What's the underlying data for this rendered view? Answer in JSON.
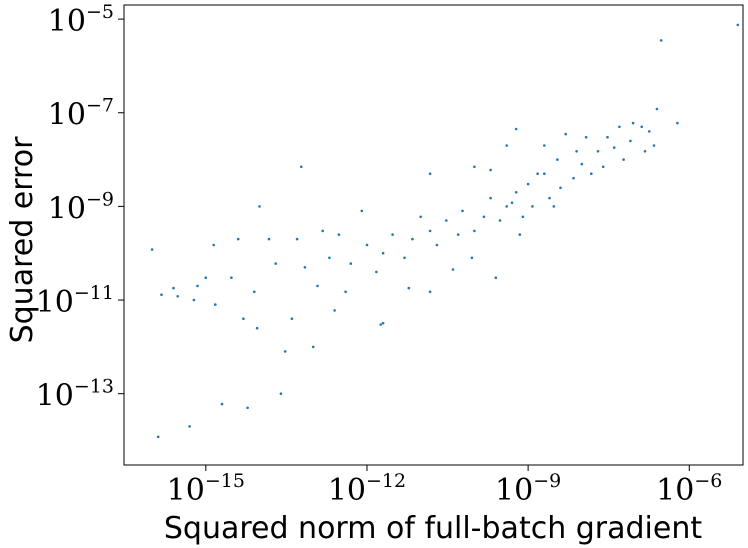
{
  "chart_data": {
    "type": "scatter",
    "title": "",
    "xlabel": "Squared norm of full-batch gradient",
    "ylabel": "Squared error",
    "xscale": "log",
    "yscale": "log",
    "xlim": [
      3e-17,
      1e-05
    ],
    "ylim": [
      3e-15,
      2e-05
    ],
    "grid": false,
    "marker_color": "#1f77b4",
    "x_ticks": [
      {
        "base": "10",
        "exp": "−15",
        "value": 1e-15
      },
      {
        "base": "10",
        "exp": "−12",
        "value": 1e-12
      },
      {
        "base": "10",
        "exp": "−9",
        "value": 1e-09
      },
      {
        "base": "10",
        "exp": "−6",
        "value": 1e-06
      }
    ],
    "y_ticks": [
      {
        "base": "10",
        "exp": "−5",
        "value": 1e-05
      },
      {
        "base": "10",
        "exp": "−7",
        "value": 1e-07
      },
      {
        "base": "10",
        "exp": "−9",
        "value": 1e-09
      },
      {
        "base": "10",
        "exp": "−11",
        "value": 1e-11
      },
      {
        "base": "10",
        "exp": "−13",
        "value": 1e-13
      }
    ],
    "points_note": "approximately 800 points; representative sample listed",
    "points": [
      [
        8e-06,
        7.5e-06
      ],
      [
        3e-07,
        3.5e-06
      ],
      [
        6e-07,
        6e-08
      ],
      [
        2.5e-07,
        1.2e-07
      ],
      [
        1.8e-07,
        4e-08
      ],
      [
        2.2e-07,
        2e-08
      ],
      [
        1.3e-07,
        5e-08
      ],
      [
        9e-08,
        6e-08
      ],
      [
        1.5e-07,
        1.5e-08
      ],
      [
        8e-08,
        2.5e-08
      ],
      [
        5e-08,
        5e-08
      ],
      [
        3e-08,
        3e-08
      ],
      [
        6e-08,
        1e-08
      ],
      [
        4e-08,
        1.8e-08
      ],
      [
        2e-08,
        1.5e-08
      ],
      [
        1.2e-08,
        3e-08
      ],
      [
        2.5e-08,
        7e-09
      ],
      [
        1.5e-08,
        5e-09
      ],
      [
        8e-09,
        1.5e-08
      ],
      [
        5e-09,
        3.5e-08
      ],
      [
        1e-08,
        8e-09
      ],
      [
        7e-09,
        4e-09
      ],
      [
        3.5e-09,
        1e-08
      ],
      [
        2e-09,
        2e-08
      ],
      [
        4e-09,
        2.5e-09
      ],
      [
        6e-10,
        4.5e-08
      ],
      [
        1.5e-09,
        5e-09
      ],
      [
        2.5e-09,
        1.5e-09
      ],
      [
        1e-09,
        3e-09
      ],
      [
        1.2e-09,
        1e-09
      ],
      [
        6e-10,
        2e-09
      ],
      [
        8e-10,
        6e-10
      ],
      [
        4e-10,
        1e-09
      ],
      [
        3e-10,
        5e-10
      ],
      [
        2e-10,
        1.5e-09
      ],
      [
        1.5e-10,
        6e-10
      ],
      [
        1e-10,
        3e-10
      ],
      [
        6e-11,
        8e-10
      ],
      [
        5e-11,
        2.5e-10
      ],
      [
        3e-11,
        5e-10
      ],
      [
        2e-11,
        1.5e-10
      ],
      [
        1.5e-11,
        3e-10
      ],
      [
        1e-11,
        6e-10
      ],
      [
        7e-12,
        2e-10
      ],
      [
        5e-12,
        8e-11
      ],
      [
        3e-12,
        2.5e-10
      ],
      [
        2e-12,
        1e-10
      ],
      [
        1.5e-12,
        4e-11
      ],
      [
        1e-12,
        1.5e-10
      ],
      [
        8e-13,
        8e-10
      ],
      [
        5e-13,
        6e-11
      ],
      [
        4e-13,
        1.5e-11
      ],
      [
        3e-13,
        2.5e-10
      ],
      [
        2.5e-13,
        6e-12
      ],
      [
        2e-13,
        8e-11
      ],
      [
        1.5e-13,
        3e-10
      ],
      [
        1.2e-13,
        2e-11
      ],
      [
        1e-13,
        1e-12
      ],
      [
        7e-14,
        5e-11
      ],
      [
        6e-14,
        7e-09
      ],
      [
        5e-14,
        2e-10
      ],
      [
        4e-14,
        4e-12
      ],
      [
        3e-14,
        8e-13
      ],
      [
        2.5e-14,
        1e-13
      ],
      [
        2e-14,
        6e-11
      ],
      [
        1.5e-14,
        2e-10
      ],
      [
        1e-14,
        1e-09
      ],
      [
        8e-15,
        1.5e-11
      ],
      [
        6e-15,
        5e-14
      ],
      [
        5e-15,
        4e-12
      ],
      [
        4e-15,
        2e-10
      ],
      [
        3e-15,
        3e-11
      ],
      [
        2e-15,
        6e-14
      ],
      [
        1.5e-15,
        8e-12
      ],
      [
        1e-15,
        3e-11
      ],
      [
        7e-16,
        2e-11
      ],
      [
        6e-16,
        1e-11
      ],
      [
        5e-16,
        2e-14
      ],
      [
        3e-16,
        1.2e-11
      ],
      [
        2.5e-16,
        1.8e-11
      ],
      [
        1.5e-16,
        1.3e-11
      ],
      [
        1e-16,
        1.2e-10
      ],
      [
        1.3e-16,
        1.2e-14
      ],
      [
        1.4e-15,
        1.5e-10
      ],
      [
        9e-15,
        2.5e-12
      ],
      [
        1.8e-12,
        3e-12
      ],
      [
        2e-12,
        3.2e-12
      ],
      [
        1.5e-11,
        5e-09
      ],
      [
        1e-10,
        7e-09
      ],
      [
        4e-10,
        2e-08
      ],
      [
        2e-09,
        5e-09
      ],
      [
        3e-09,
        1e-09
      ],
      [
        5e-10,
        1.2e-09
      ],
      [
        7e-10,
        2.5e-10
      ],
      [
        9e-11,
        8e-11
      ],
      [
        2.5e-10,
        3e-11
      ],
      [
        1.5e-11,
        1.5e-11
      ],
      [
        6e-12,
        1.8e-11
      ],
      [
        4e-11,
        4.5e-11
      ],
      [
        2e-10,
        6e-09
      ]
    ]
  }
}
